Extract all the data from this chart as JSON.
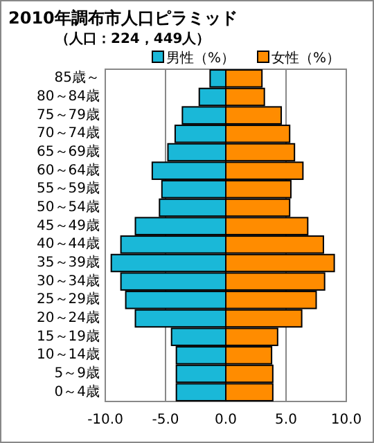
{
  "chart_data": {
    "type": "bar",
    "orientation": "horizontal",
    "stacked": true,
    "title": "2010年調布市人口ピラミッド",
    "subtitle": "（人口：224，449人）",
    "categories": [
      "85歳～",
      "80～84歳",
      "75～79歳",
      "70～74歳",
      "65～69歳",
      "60～64歳",
      "55～59歳",
      "50～54歳",
      "45～49歳",
      "40～44歳",
      "35～39歳",
      "30～34歳",
      "25～29歳",
      "20～24歳",
      "15～19歳",
      "10～14歳",
      "5～9歳",
      "0～4歳"
    ],
    "series": [
      {
        "name": "男性（%）",
        "color": "#1ab8d8",
        "values": [
          -1.3,
          -2.2,
          -3.6,
          -4.2,
          -4.8,
          -6.1,
          -5.3,
          -5.5,
          -7.5,
          -8.7,
          -9.5,
          -8.7,
          -8.3,
          -7.5,
          -4.5,
          -4.1,
          -4.1,
          -4.1
        ]
      },
      {
        "name": "女性（%）",
        "color": "#ff8c00",
        "values": [
          3.0,
          3.2,
          4.6,
          5.3,
          5.7,
          6.4,
          5.4,
          5.3,
          6.8,
          8.1,
          9.0,
          8.2,
          7.5,
          6.3,
          4.3,
          3.8,
          3.9,
          3.9
        ]
      }
    ],
    "xlim": [
      -10,
      10
    ],
    "xticks": [
      {
        "value": -10,
        "label": "-10.0"
      },
      {
        "value": -5,
        "label": "-5.0"
      },
      {
        "value": 0,
        "label": "0.0"
      },
      {
        "value": 5,
        "label": "5.0"
      },
      {
        "value": 10,
        "label": "10.0"
      }
    ],
    "grid": "x",
    "legend": "top right"
  }
}
